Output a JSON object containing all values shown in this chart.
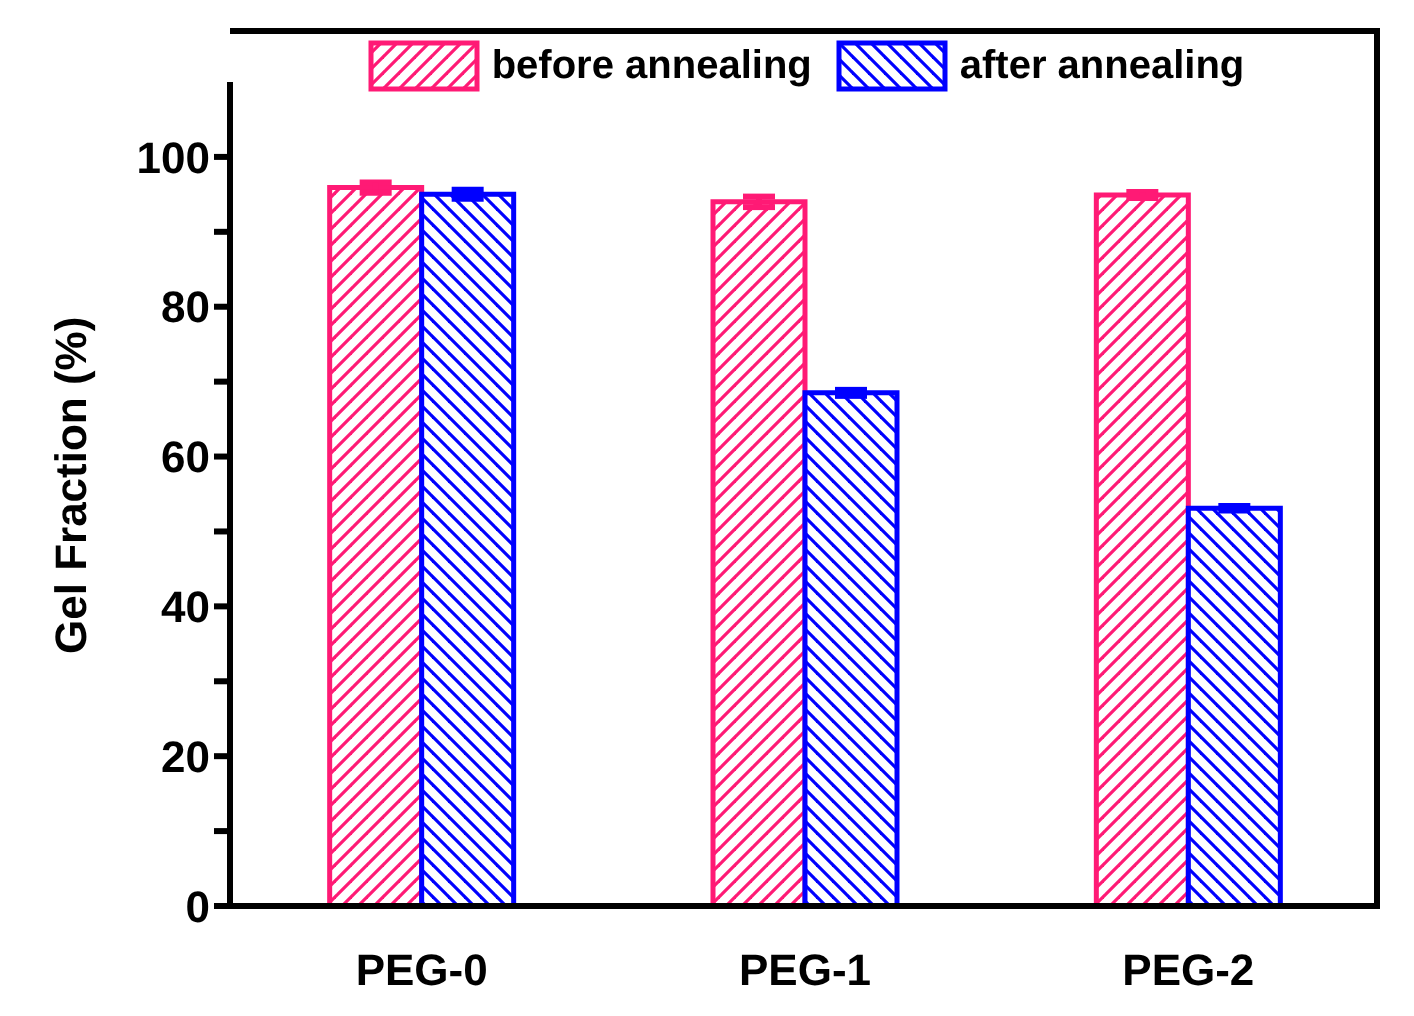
{
  "chart_data": {
    "type": "bar",
    "ylabel": "Gel Fraction (%)",
    "categories": [
      "PEG-0",
      "PEG-1",
      "PEG-2"
    ],
    "series": [
      {
        "name": "before annealing",
        "color": "#ff1a75",
        "values": [
          95.9,
          94.0,
          94.9
        ],
        "errors": [
          0.7,
          0.7,
          0.4
        ]
      },
      {
        "name": "after annealing",
        "color": "#0000ff",
        "values": [
          95.0,
          68.5,
          53.1
        ],
        "errors": [
          0.6,
          0.4,
          0.3
        ]
      }
    ],
    "ylim": [
      0,
      110
    ],
    "yticks": [
      0,
      {
        "value": 10,
        "label": null
      },
      20,
      {
        "value": 30,
        "label": null
      },
      40,
      {
        "value": 50,
        "label": null
      },
      60,
      {
        "value": 70,
        "label": null
      },
      80,
      {
        "value": 90,
        "label": null
      },
      100
    ],
    "legend": "top"
  }
}
